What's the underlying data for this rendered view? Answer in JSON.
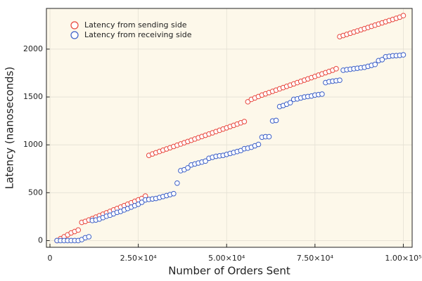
{
  "chart_data": {
    "type": "scatter",
    "x_label": "Number of Orders Sent",
    "y_label": "Latency (nanoseconds)",
    "x": [
      2000,
      3000,
      4000,
      5000,
      6000,
      7000,
      8000,
      9000,
      10000,
      11000,
      12000,
      13000,
      14000,
      15000,
      16000,
      17000,
      18000,
      19000,
      20000,
      21000,
      22000,
      23000,
      24000,
      25000,
      26000,
      27000,
      28000,
      29000,
      30000,
      31000,
      32000,
      33000,
      34000,
      35000,
      36000,
      37000,
      38000,
      39000,
      40000,
      41000,
      42000,
      43000,
      44000,
      45000,
      46000,
      47000,
      48000,
      49000,
      50000,
      51000,
      52000,
      53000,
      54000,
      55000,
      56000,
      57000,
      58000,
      59000,
      60000,
      61000,
      62000,
      63000,
      64000,
      65000,
      66000,
      67000,
      68000,
      69000,
      70000,
      71000,
      72000,
      73000,
      74000,
      75000,
      76000,
      77000,
      78000,
      79000,
      80000,
      81000,
      82000,
      83000,
      84000,
      85000,
      86000,
      87000,
      88000,
      89000,
      90000,
      91000,
      92000,
      93000,
      94000,
      95000,
      96000,
      97000,
      98000,
      99000,
      100000
    ],
    "series": [
      {
        "name": "Latency from sending side",
        "color": "#e8463c",
        "values": [
          0,
          20,
          40,
          60,
          80,
          95,
          110,
          190,
          200,
          215,
          230,
          245,
          260,
          275,
          290,
          305,
          320,
          335,
          350,
          365,
          380,
          395,
          410,
          425,
          440,
          465,
          890,
          905,
          918,
          931,
          944,
          957,
          970,
          983,
          996,
          1009,
          1022,
          1035,
          1048,
          1061,
          1074,
          1087,
          1100,
          1113,
          1126,
          1139,
          1152,
          1165,
          1178,
          1191,
          1204,
          1217,
          1230,
          1243,
          1450,
          1475,
          1490,
          1505,
          1520,
          1533,
          1546,
          1559,
          1572,
          1585,
          1598,
          1611,
          1624,
          1637,
          1650,
          1663,
          1676,
          1689,
          1702,
          1715,
          1728,
          1741,
          1754,
          1767,
          1780,
          1795,
          2130,
          2142,
          2154,
          2166,
          2178,
          2190,
          2202,
          2214,
          2226,
          2238,
          2250,
          2262,
          2274,
          2286,
          2298,
          2310,
          2322,
          2334,
          2350
        ]
      },
      {
        "name": "Latency from receiving side",
        "color": "#3b5fc8",
        "values": [
          0,
          0,
          0,
          0,
          0,
          0,
          0,
          10,
          30,
          40,
          210,
          215,
          225,
          240,
          255,
          265,
          280,
          295,
          305,
          320,
          335,
          350,
          365,
          380,
          400,
          425,
          430,
          435,
          440,
          450,
          460,
          470,
          480,
          490,
          600,
          730,
          740,
          760,
          790,
          800,
          810,
          820,
          830,
          860,
          870,
          880,
          885,
          890,
          900,
          910,
          920,
          930,
          940,
          960,
          965,
          975,
          990,
          1005,
          1080,
          1085,
          1085,
          1250,
          1255,
          1400,
          1410,
          1425,
          1440,
          1475,
          1480,
          1490,
          1500,
          1505,
          1510,
          1520,
          1525,
          1530,
          1650,
          1660,
          1665,
          1670,
          1675,
          1780,
          1785,
          1790,
          1795,
          1800,
          1805,
          1810,
          1820,
          1830,
          1840,
          1880,
          1890,
          1920,
          1925,
          1930,
          1932,
          1935,
          1940
        ]
      }
    ],
    "xlim": [
      -1000,
      102500
    ],
    "ylim": [
      -70,
      2425
    ],
    "xticks": [
      0,
      {
        "value": 25000,
        "label": "2.50×10⁴"
      },
      {
        "value": 50000,
        "label": "5.00×10⁴"
      },
      {
        "value": 75000,
        "label": "7.50×10⁴"
      },
      {
        "value": 100000,
        "label": "1.00×10⁵"
      }
    ],
    "yticks": [
      0,
      500,
      1000,
      1500,
      2000
    ],
    "grid": true,
    "legend": "upper-left"
  }
}
